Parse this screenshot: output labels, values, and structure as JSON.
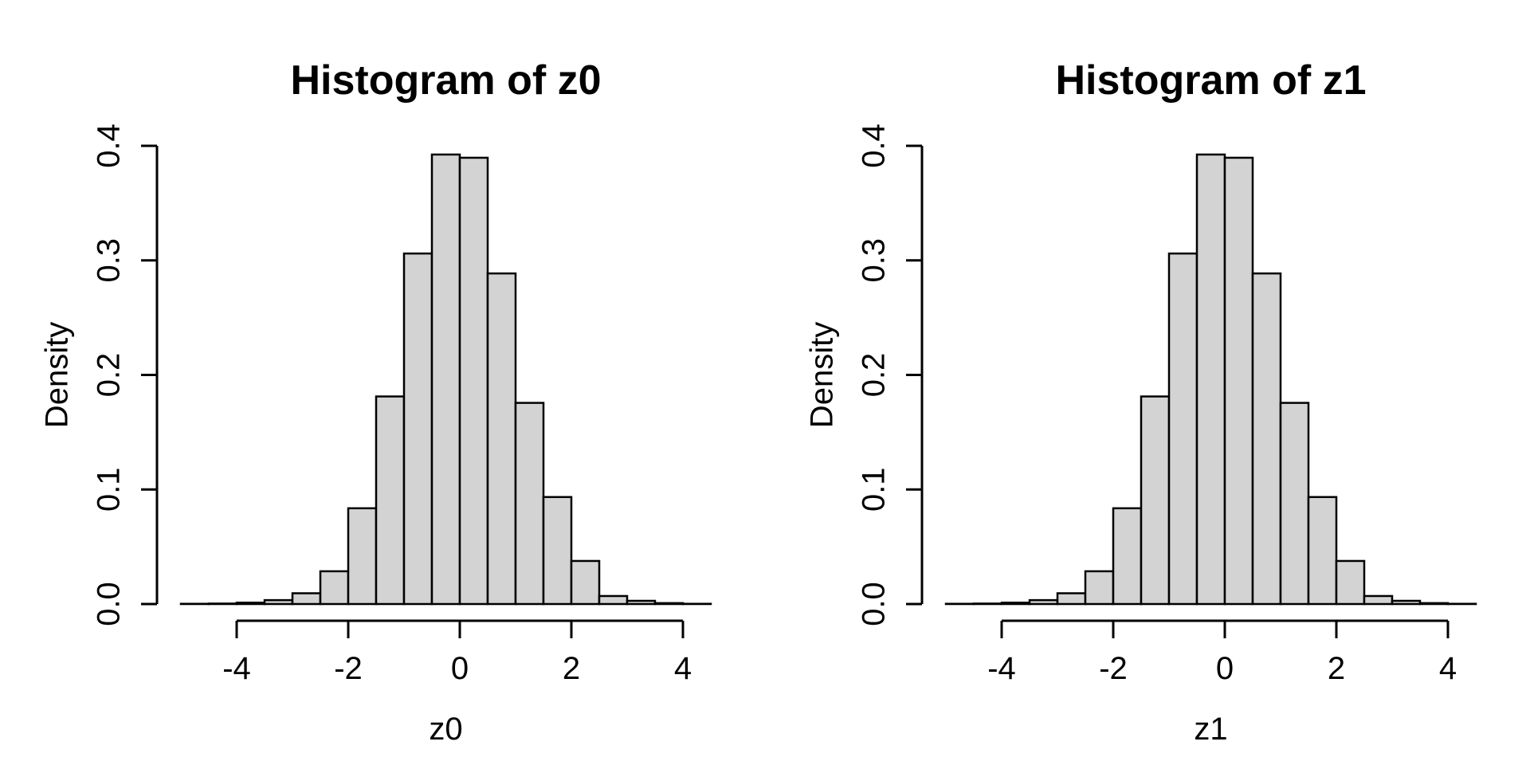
{
  "page": {
    "background": "#ffffff",
    "text_color": "#000000"
  },
  "chart_data": [
    {
      "type": "bar",
      "kind": "histogram",
      "title": "Histogram of z0",
      "xlabel": "z0",
      "ylabel": "Density",
      "x_tick_labels": [
        "-4",
        "-2",
        "0",
        "2",
        "4"
      ],
      "x_tick_values": [
        -4,
        -2,
        0,
        2,
        4
      ],
      "y_tick_labels": [
        "0.0",
        "0.1",
        "0.2",
        "0.3",
        "0.4"
      ],
      "y_tick_values": [
        0.0,
        0.1,
        0.2,
        0.3,
        0.4
      ],
      "xlim": [
        -5,
        4.5
      ],
      "ylim": [
        0,
        0.4
      ],
      "bin_start": -5,
      "bin_width": 0.5,
      "densities": [
        0.0002,
        0.0004,
        0.0012,
        0.0034,
        0.0094,
        0.0286,
        0.0836,
        0.1812,
        0.306,
        0.3924,
        0.3896,
        0.2886,
        0.1756,
        0.0934,
        0.0376,
        0.007,
        0.0028,
        0.0008,
        0.0002
      ],
      "bar_fill": "#d3d3d3",
      "bar_stroke": "#000000",
      "grid": false,
      "legend": "none"
    },
    {
      "type": "bar",
      "kind": "histogram",
      "title": "Histogram of z1",
      "xlabel": "z1",
      "ylabel": "Density",
      "x_tick_labels": [
        "-4",
        "-2",
        "0",
        "2",
        "4"
      ],
      "x_tick_values": [
        -4,
        -2,
        0,
        2,
        4
      ],
      "y_tick_labels": [
        "0.0",
        "0.1",
        "0.2",
        "0.3",
        "0.4"
      ],
      "y_tick_values": [
        0.0,
        0.1,
        0.2,
        0.3,
        0.4
      ],
      "xlim": [
        -5,
        4.5
      ],
      "ylim": [
        0,
        0.4
      ],
      "bin_start": -5,
      "bin_width": 0.5,
      "densities": [
        0.0002,
        0.0004,
        0.0012,
        0.0034,
        0.0094,
        0.0286,
        0.0836,
        0.1812,
        0.306,
        0.3924,
        0.3896,
        0.2886,
        0.1756,
        0.0934,
        0.0376,
        0.007,
        0.0028,
        0.0008,
        0.0002
      ],
      "bar_fill": "#d3d3d3",
      "bar_stroke": "#000000",
      "grid": false,
      "legend": "none"
    }
  ]
}
